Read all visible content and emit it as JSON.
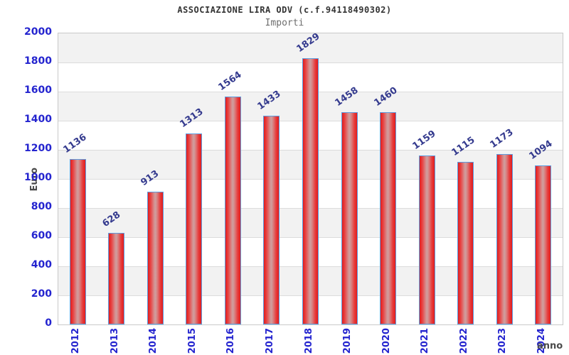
{
  "chart_data": {
    "type": "bar",
    "title": "ASSOCIAZIONE LIRA ODV (c.f.94118490302)",
    "subtitle": "Importi",
    "xlabel": "anno",
    "ylabel": "Euro",
    "categories": [
      "2012",
      "2013",
      "2014",
      "2015",
      "2016",
      "2017",
      "2018",
      "2019",
      "2020",
      "2021",
      "2022",
      "2023",
      "2024"
    ],
    "values": [
      1136,
      628,
      913,
      1313,
      1564,
      1433,
      1829,
      1458,
      1460,
      1159,
      1115,
      1173,
      1094
    ],
    "ylim": [
      0,
      2000
    ],
    "ytick_step": 200,
    "grid": true,
    "legend": "none",
    "colors": {
      "bar_fill_edge": "#e11d1d",
      "bar_fill_center": "#cf9f9f",
      "bar_border": "#5c9de0",
      "tick_label": "#2424cf",
      "value_label": "#343a8e",
      "axis_title": "#4a4a4a",
      "title": "#333333",
      "subtitle": "#6e6e6e",
      "band": "#f2f2f2",
      "gridline": "#dcdcdc",
      "plot_border": "#c9c9c9",
      "background": "#ffffff"
    }
  }
}
